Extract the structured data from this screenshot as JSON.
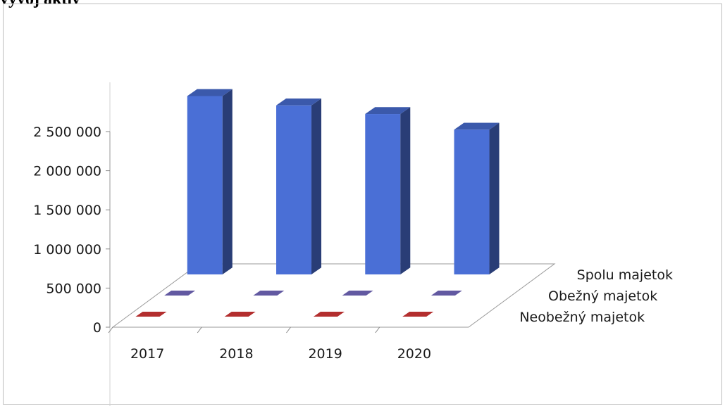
{
  "heading": {
    "text": "vývoj aktív"
  },
  "chart_data": {
    "type": "bar",
    "categories": [
      "2017",
      "2018",
      "2019",
      "2020"
    ],
    "series": [
      {
        "name": "Neobežný majetok",
        "values": [
          0,
          0,
          0,
          0
        ],
        "color": "#e03a3a"
      },
      {
        "name": "Obežný majetok",
        "values": [
          0,
          0,
          0,
          0
        ],
        "color": "#7b6fc9"
      },
      {
        "name": "Spolu majetok",
        "values": [
          2280000,
          2160000,
          2050000,
          1850000
        ],
        "color": "#4a6fd6"
      }
    ],
    "y_ticks": [
      "0",
      "500 000",
      "1 000 000",
      "1 500 000",
      "2 000 000",
      "2 500 000"
    ],
    "ylim": [
      0,
      2500000
    ],
    "grid": false,
    "legend": "none",
    "style": "3d-clustered-depth"
  }
}
